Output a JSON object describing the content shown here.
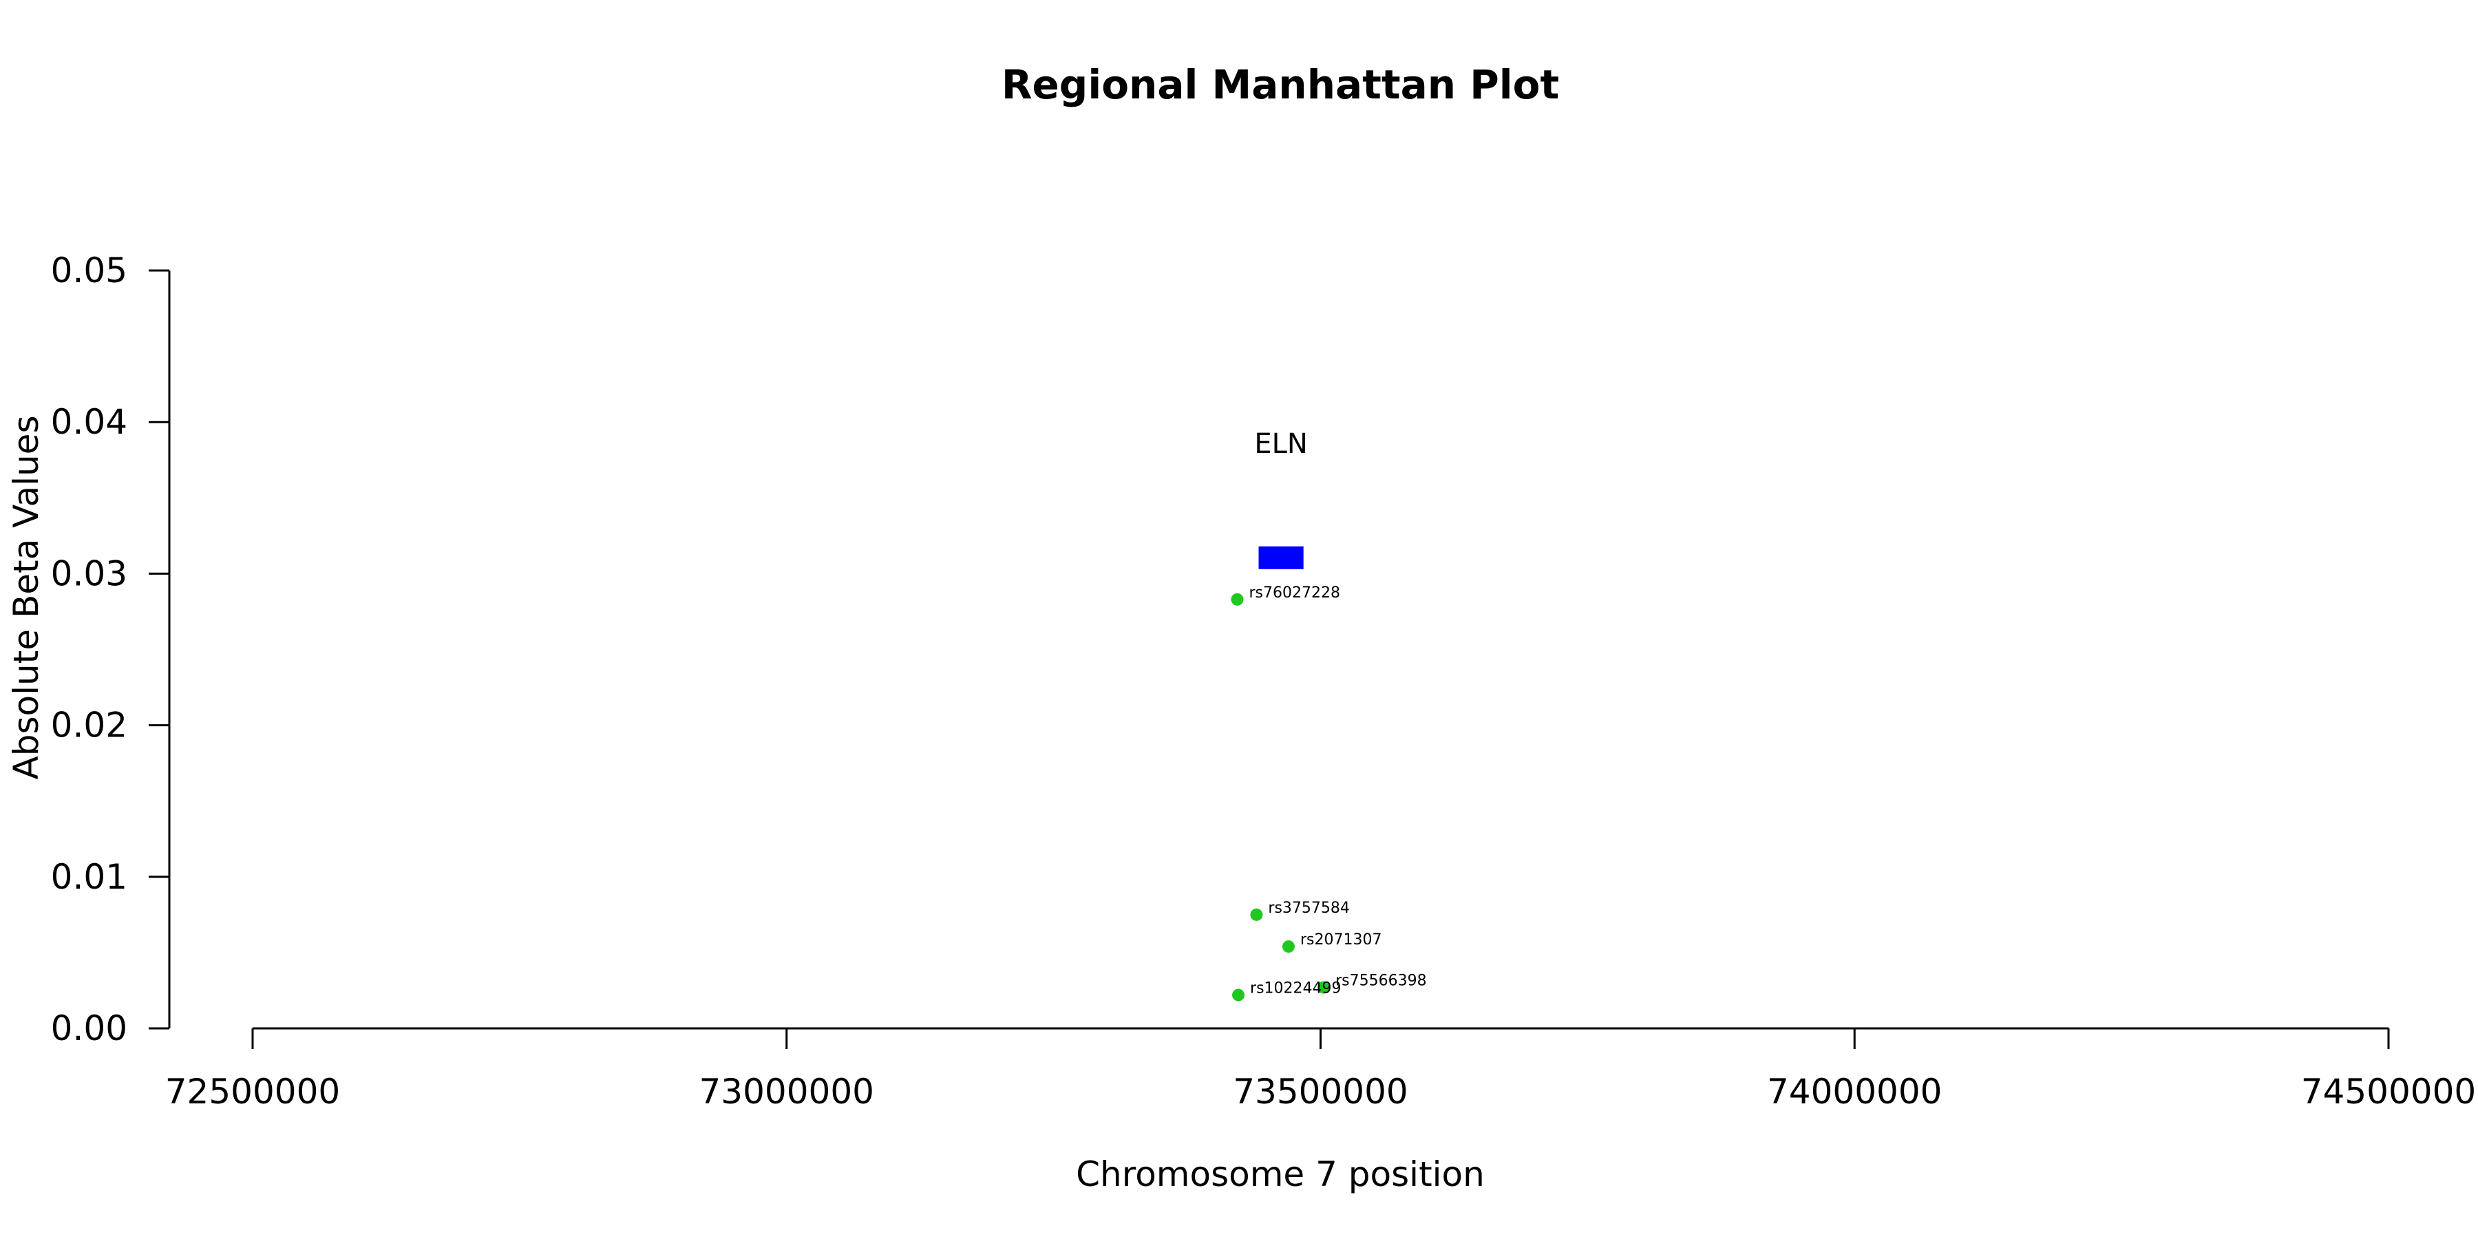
{
  "chart_data": {
    "type": "scatter",
    "title": "Regional Manhattan Plot",
    "xlabel": "Chromosome 7 position",
    "ylabel": "Absolute Beta Values",
    "xlim": [
      72500000,
      74500000
    ],
    "ylim": [
      0,
      0.05
    ],
    "x_ticks": [
      72500000,
      73000000,
      73500000,
      74000000,
      74500000
    ],
    "x_tick_labels": [
      "72500000",
      "73000000",
      "73500000",
      "74000000",
      "74500000"
    ],
    "y_ticks": [
      0,
      0.01,
      0.02,
      0.03,
      0.04,
      0.05
    ],
    "y_tick_labels": [
      "0.00",
      "0.01",
      "0.02",
      "0.03",
      "0.04",
      "0.05"
    ],
    "grid": false,
    "point_color": "#1ec81e",
    "points": [
      {
        "label": "rs76027228",
        "x": 73422000,
        "y": 0.0283
      },
      {
        "label": "rs3757584",
        "x": 73440000,
        "y": 0.0075
      },
      {
        "label": "rs2071307",
        "x": 73470000,
        "y": 0.0054
      },
      {
        "label": "rs75566398",
        "x": 73503000,
        "y": 0.0027
      },
      {
        "label": "rs10224499",
        "x": 73423000,
        "y": 0.0022
      }
    ],
    "genes": [
      {
        "name": "ELN",
        "start": 73442000,
        "end": 73484000,
        "y_bottom": 0.0303,
        "y_top": 0.0318,
        "label_y": 0.0385,
        "color": "#0000ff"
      }
    ]
  }
}
